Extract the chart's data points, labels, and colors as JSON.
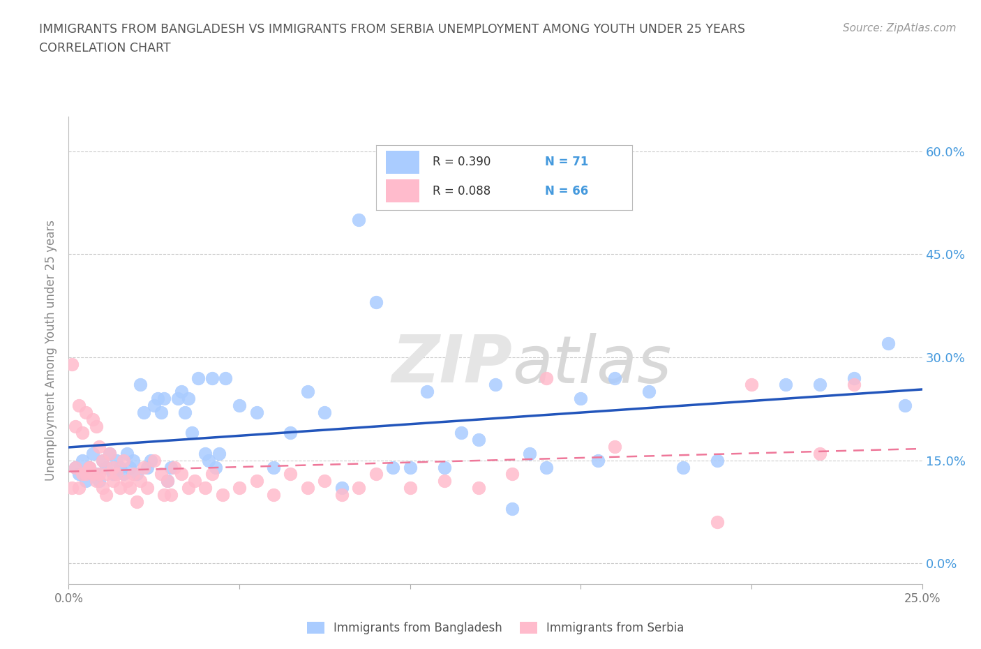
{
  "title_line1": "IMMIGRANTS FROM BANGLADESH VS IMMIGRANTS FROM SERBIA UNEMPLOYMENT AMONG YOUTH UNDER 25 YEARS",
  "title_line2": "CORRELATION CHART",
  "source_text": "Source: ZipAtlas.com",
  "ylabel": "Unemployment Among Youth under 25 years",
  "xlim": [
    0.0,
    0.25
  ],
  "ylim": [
    -0.03,
    0.65
  ],
  "yticks": [
    0.0,
    0.15,
    0.3,
    0.45,
    0.6
  ],
  "ytick_labels": [
    "0.0%",
    "15.0%",
    "30.0%",
    "45.0%",
    "60.0%"
  ],
  "xticks": [
    0.0,
    0.05,
    0.1,
    0.15,
    0.2,
    0.25
  ],
  "xtick_labels": [
    "0.0%",
    "",
    "",
    "",
    "",
    "25.0%"
  ],
  "bangladesh_color": "#aaccff",
  "serbia_color": "#ffbbcc",
  "bangladesh_line_color": "#2255bb",
  "serbia_line_color": "#ee7799",
  "watermark_zip": "ZIP",
  "watermark_atlas": "atlas",
  "legend_r_bangladesh": "R = 0.390",
  "legend_n_bangladesh": "N = 71",
  "legend_r_serbia": "R = 0.088",
  "legend_n_serbia": "N = 66",
  "bangladesh_scatter_x": [
    0.002,
    0.003,
    0.004,
    0.005,
    0.006,
    0.007,
    0.008,
    0.009,
    0.01,
    0.011,
    0.012,
    0.013,
    0.014,
    0.015,
    0.016,
    0.017,
    0.018,
    0.019,
    0.02,
    0.021,
    0.022,
    0.023,
    0.024,
    0.025,
    0.026,
    0.027,
    0.028,
    0.029,
    0.03,
    0.032,
    0.033,
    0.034,
    0.035,
    0.036,
    0.038,
    0.04,
    0.041,
    0.042,
    0.043,
    0.044,
    0.046,
    0.05,
    0.055,
    0.06,
    0.065,
    0.07,
    0.075,
    0.08,
    0.085,
    0.09,
    0.095,
    0.1,
    0.105,
    0.11,
    0.115,
    0.12,
    0.125,
    0.13,
    0.135,
    0.14,
    0.155,
    0.17,
    0.19,
    0.21,
    0.22,
    0.23,
    0.24,
    0.245,
    0.15,
    0.16,
    0.18
  ],
  "bangladesh_scatter_y": [
    0.14,
    0.13,
    0.15,
    0.12,
    0.14,
    0.16,
    0.13,
    0.12,
    0.15,
    0.14,
    0.16,
    0.13,
    0.15,
    0.14,
    0.13,
    0.16,
    0.14,
    0.15,
    0.13,
    0.26,
    0.22,
    0.14,
    0.15,
    0.23,
    0.24,
    0.22,
    0.24,
    0.12,
    0.14,
    0.24,
    0.25,
    0.22,
    0.24,
    0.19,
    0.27,
    0.16,
    0.15,
    0.27,
    0.14,
    0.16,
    0.27,
    0.23,
    0.22,
    0.14,
    0.19,
    0.25,
    0.22,
    0.11,
    0.5,
    0.38,
    0.14,
    0.14,
    0.25,
    0.14,
    0.19,
    0.18,
    0.26,
    0.08,
    0.16,
    0.14,
    0.15,
    0.25,
    0.15,
    0.26,
    0.26,
    0.27,
    0.32,
    0.23,
    0.24,
    0.27,
    0.14
  ],
  "serbia_scatter_x": [
    0.001,
    0.001,
    0.002,
    0.002,
    0.003,
    0.003,
    0.004,
    0.004,
    0.005,
    0.005,
    0.006,
    0.006,
    0.007,
    0.007,
    0.008,
    0.008,
    0.009,
    0.009,
    0.01,
    0.01,
    0.011,
    0.011,
    0.012,
    0.013,
    0.013,
    0.014,
    0.015,
    0.016,
    0.017,
    0.018,
    0.019,
    0.02,
    0.021,
    0.022,
    0.023,
    0.025,
    0.027,
    0.028,
    0.029,
    0.03,
    0.031,
    0.033,
    0.035,
    0.037,
    0.04,
    0.042,
    0.045,
    0.05,
    0.055,
    0.06,
    0.065,
    0.07,
    0.075,
    0.08,
    0.085,
    0.09,
    0.1,
    0.11,
    0.12,
    0.13,
    0.14,
    0.16,
    0.19,
    0.2,
    0.22,
    0.23
  ],
  "serbia_scatter_y": [
    0.11,
    0.29,
    0.2,
    0.14,
    0.11,
    0.23,
    0.13,
    0.19,
    0.13,
    0.22,
    0.14,
    0.14,
    0.13,
    0.21,
    0.12,
    0.2,
    0.13,
    0.17,
    0.11,
    0.15,
    0.13,
    0.1,
    0.16,
    0.12,
    0.14,
    0.13,
    0.11,
    0.15,
    0.12,
    0.11,
    0.13,
    0.09,
    0.12,
    0.14,
    0.11,
    0.15,
    0.13,
    0.1,
    0.12,
    0.1,
    0.14,
    0.13,
    0.11,
    0.12,
    0.11,
    0.13,
    0.1,
    0.11,
    0.12,
    0.1,
    0.13,
    0.11,
    0.12,
    0.1,
    0.11,
    0.13,
    0.11,
    0.12,
    0.11,
    0.13,
    0.27,
    0.17,
    0.06,
    0.26,
    0.16,
    0.26
  ],
  "bg_color": "#ffffff",
  "grid_color": "#cccccc"
}
